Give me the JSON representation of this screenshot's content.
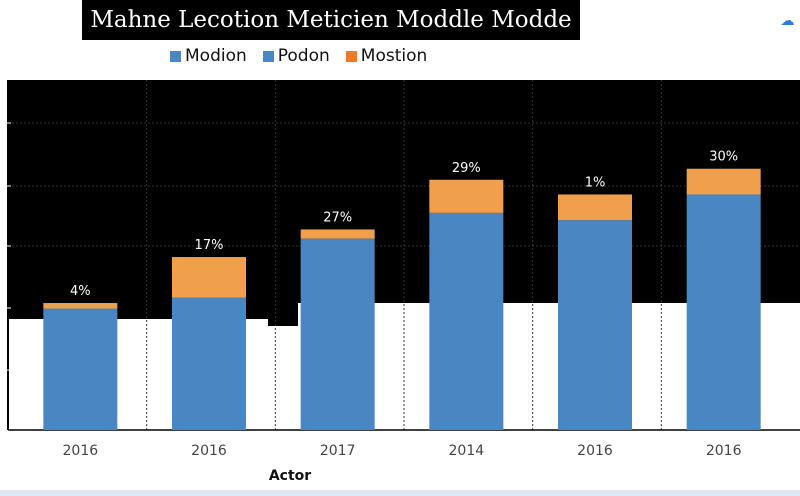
{
  "title": "Mahne Lecotion Meticien Moddle Modde",
  "corner_icon": "cloud-icon",
  "xlabel": "Actor",
  "chart_data": {
    "type": "bar",
    "stacked": true,
    "title": "Mahne Lecotion Meticien Moddle Modde",
    "xlabel": "Actor",
    "ylabel": "",
    "ylim": [
      0,
      100
    ],
    "grid": true,
    "legend_position": "top",
    "categories": [
      "2016",
      "2016",
      "2017",
      "2014",
      "2016",
      "2016"
    ],
    "series": [
      {
        "name": "Modion",
        "color": "#4a86c1",
        "values": [
          33,
          36,
          52,
          59,
          57,
          64
        ]
      },
      {
        "name": "Podon",
        "color": "#4a86c1",
        "values": [
          0,
          0,
          0,
          0,
          0,
          0
        ]
      },
      {
        "name": "Mostion",
        "color": "#f0a04c",
        "values": [
          1.5,
          11,
          2.5,
          9,
          7,
          7
        ]
      }
    ],
    "data_labels": [
      "4%",
      "17%",
      "27%",
      "29%",
      "1%",
      "30%"
    ]
  }
}
